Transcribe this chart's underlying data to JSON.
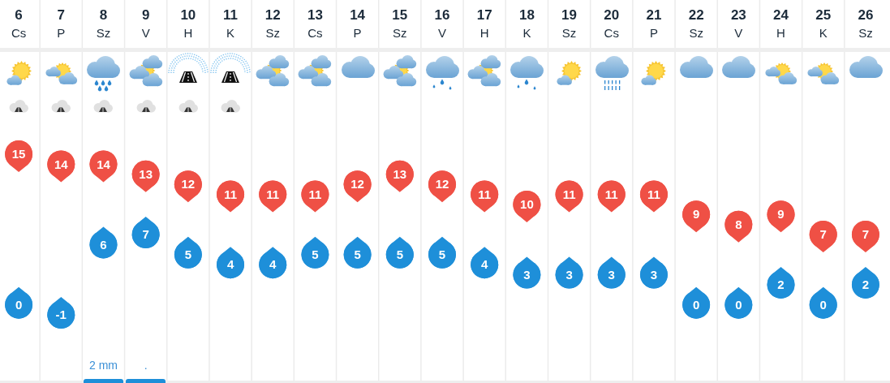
{
  "chart_data": {
    "type": "scatter",
    "categories": [
      "6\nCs",
      "7\nP",
      "8\nSz",
      "9\nV",
      "10\nH",
      "11\nK",
      "12\nSz",
      "13\nCs",
      "14\nP",
      "15\nSz",
      "16\nV",
      "17\nH",
      "18\nK",
      "19\nSz",
      "20\nCs",
      "21\nP",
      "22\nSz",
      "23\nV",
      "24\nH",
      "25\nK",
      "26\nSz"
    ],
    "series": [
      {
        "color": "#ef5045",
        "values": [
          15,
          14,
          14,
          13,
          12,
          11,
          11,
          11,
          12,
          13,
          12,
          11,
          10,
          11,
          11,
          11,
          9,
          8,
          9,
          7,
          7
        ]
      },
      {
        "color": "#1e8fd9",
        "values": [
          0,
          -1,
          6,
          7,
          5,
          4,
          4,
          5,
          5,
          5,
          5,
          4,
          3,
          3,
          3,
          3,
          0,
          0,
          2,
          0,
          2
        ]
      }
    ],
    "marker": "circle",
    "data_labels": true,
    "grid": "x",
    "annotations": [
      "2 mm",
      "."
    ]
  }
}
